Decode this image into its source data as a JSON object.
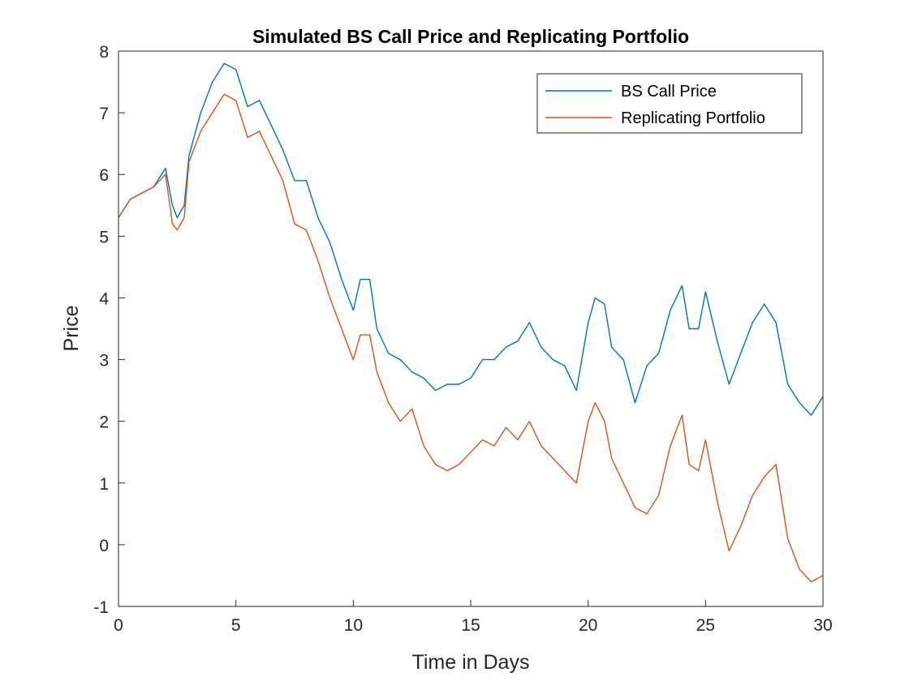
{
  "chart_data": {
    "type": "line",
    "title": "Simulated BS Call Price and Replicating Portfolio",
    "xlabel": "Time in Days",
    "ylabel": "Price",
    "xlim": [
      0,
      30
    ],
    "ylim": [
      -1,
      8
    ],
    "xticks": [
      0,
      5,
      10,
      15,
      20,
      25,
      30
    ],
    "yticks": [
      -1,
      0,
      1,
      2,
      3,
      4,
      5,
      6,
      7,
      8
    ],
    "grid": false,
    "legend_position": "top-right",
    "series": [
      {
        "name": "BS Call Price",
        "color": "#0072BD",
        "x": [
          0,
          0.5,
          1,
          1.5,
          2,
          2.3,
          2.5,
          2.8,
          3,
          3.5,
          4,
          4.5,
          5,
          5.5,
          6,
          6.5,
          7,
          7.5,
          8,
          8.5,
          9,
          9.5,
          10,
          10.3,
          10.7,
          11,
          11.5,
          12,
          12.5,
          13,
          13.5,
          14,
          14.5,
          15,
          15.5,
          16,
          16.5,
          17,
          17.5,
          18,
          18.5,
          19,
          19.5,
          20,
          20.3,
          20.7,
          21,
          21.5,
          22,
          22.5,
          23,
          23.5,
          24,
          24.3,
          24.7,
          25,
          25.5,
          26,
          26.5,
          27,
          27.5,
          28,
          28.5,
          29,
          29.5,
          30
        ],
        "y": [
          5.3,
          5.6,
          5.7,
          5.8,
          6.1,
          5.5,
          5.3,
          5.5,
          6.3,
          7.0,
          7.5,
          7.8,
          7.7,
          7.1,
          7.2,
          6.8,
          6.4,
          5.9,
          5.9,
          5.3,
          4.9,
          4.3,
          3.8,
          4.3,
          4.3,
          3.5,
          3.1,
          3.0,
          2.8,
          2.7,
          2.5,
          2.6,
          2.6,
          2.7,
          3.0,
          3.0,
          3.2,
          3.3,
          3.6,
          3.2,
          3.0,
          2.9,
          2.5,
          3.6,
          4.0,
          3.9,
          3.2,
          3.0,
          2.3,
          2.9,
          3.1,
          3.8,
          4.2,
          3.5,
          3.5,
          4.1,
          3.3,
          2.6,
          3.1,
          3.6,
          3.9,
          3.6,
          2.6,
          2.3,
          2.1,
          2.4
        ]
      },
      {
        "name": "Replicating Portfolio",
        "color": "#D95319",
        "x": [
          0,
          0.5,
          1,
          1.5,
          2,
          2.3,
          2.5,
          2.8,
          3,
          3.5,
          4,
          4.5,
          5,
          5.5,
          6,
          6.5,
          7,
          7.5,
          8,
          8.5,
          9,
          9.5,
          10,
          10.3,
          10.7,
          11,
          11.5,
          12,
          12.5,
          13,
          13.5,
          14,
          14.5,
          15,
          15.5,
          16,
          16.5,
          17,
          17.5,
          18,
          18.5,
          19,
          19.5,
          20,
          20.3,
          20.7,
          21,
          21.5,
          22,
          22.5,
          23,
          23.5,
          24,
          24.3,
          24.7,
          25,
          25.5,
          26,
          26.5,
          27,
          27.5,
          28,
          28.5,
          29,
          29.5,
          30
        ],
        "y": [
          5.3,
          5.6,
          5.7,
          5.8,
          6.0,
          5.2,
          5.1,
          5.3,
          6.2,
          6.7,
          7.0,
          7.3,
          7.2,
          6.6,
          6.7,
          6.3,
          5.9,
          5.2,
          5.1,
          4.6,
          4.0,
          3.5,
          3.0,
          3.4,
          3.4,
          2.8,
          2.3,
          2.0,
          2.2,
          1.6,
          1.3,
          1.2,
          1.3,
          1.5,
          1.7,
          1.6,
          1.9,
          1.7,
          2.0,
          1.6,
          1.4,
          1.2,
          1.0,
          2.0,
          2.3,
          2.0,
          1.4,
          1.0,
          0.6,
          0.5,
          0.8,
          1.6,
          2.1,
          1.3,
          1.2,
          1.7,
          0.7,
          -0.1,
          0.3,
          0.8,
          1.1,
          1.3,
          0.1,
          -0.4,
          -0.6,
          -0.5
        ]
      }
    ]
  }
}
